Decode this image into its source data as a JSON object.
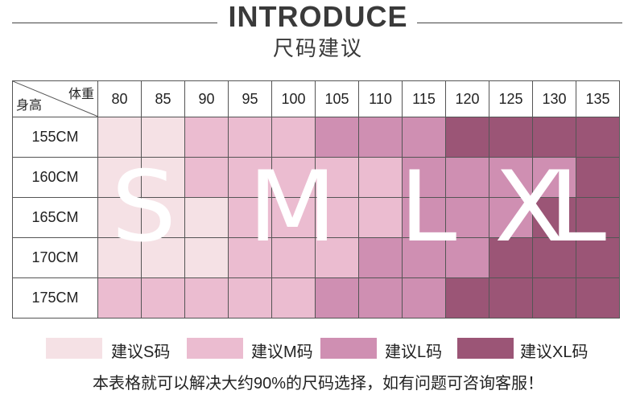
{
  "header": {
    "title": "INTRODUCE",
    "subtitle": "尺码建议"
  },
  "table": {
    "corner_top": "体重",
    "corner_bottom": "身高",
    "weights": [
      "80",
      "85",
      "90",
      "95",
      "100",
      "105",
      "110",
      "115",
      "120",
      "125",
      "130",
      "135"
    ],
    "rows": [
      {
        "height": "155CM",
        "levels": [
          1,
          1,
          2,
          2,
          2,
          3,
          3,
          3,
          4,
          4,
          4,
          4
        ]
      },
      {
        "height": "160CM",
        "levels": [
          1,
          1,
          2,
          2,
          2,
          2,
          2,
          3,
          3,
          3,
          3,
          4
        ]
      },
      {
        "height": "165CM",
        "levels": [
          1,
          1,
          1,
          2,
          2,
          2,
          2,
          3,
          3,
          3,
          4,
          4
        ]
      },
      {
        "height": "170CM",
        "levels": [
          1,
          1,
          1,
          2,
          2,
          2,
          3,
          3,
          3,
          4,
          4,
          4
        ]
      },
      {
        "height": "175CM",
        "levels": [
          2,
          2,
          2,
          2,
          2,
          3,
          3,
          3,
          4,
          4,
          4,
          4
        ]
      }
    ]
  },
  "overlay_labels": [
    "S",
    "M",
    "L",
    "XL"
  ],
  "colors": {
    "S": "#f5e1e5",
    "M": "#ebbcd0",
    "L": "#cf8fb2",
    "XL": "#9b5576"
  },
  "legend": [
    {
      "key": "S",
      "label": "建议S码"
    },
    {
      "key": "M",
      "label": "建议M码"
    },
    {
      "key": "L",
      "label": "建议L码"
    },
    {
      "key": "XL",
      "label": "建议XL码"
    }
  ],
  "note": "本表格就可以解决大约90%的尺码选择，如有问题可咨询客服！"
}
